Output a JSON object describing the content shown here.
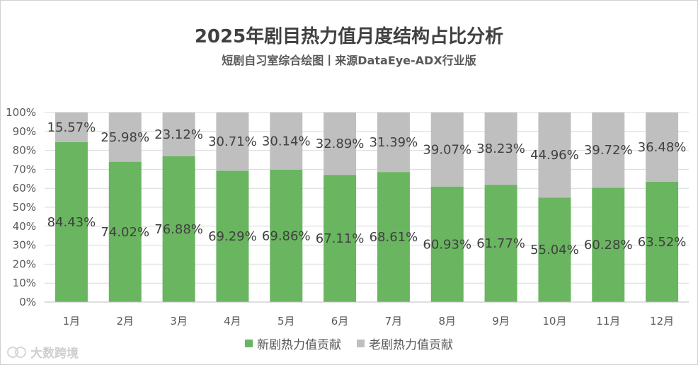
{
  "title": "2025年剧目热力值月度结构占比分析",
  "subtitle": "短剧自习室综合绘图丨来源DataEye-ADX行业版",
  "watermark": "大数跨境",
  "colors": {
    "new": "#6ab560",
    "old": "#bfbfbf",
    "grid": "#d9d9d9",
    "axis": "#bfbfbf"
  },
  "chart_data": {
    "type": "bar",
    "stacked": true,
    "percent": true,
    "categories": [
      "1月",
      "2月",
      "3月",
      "4月",
      "5月",
      "6月",
      "7月",
      "8月",
      "9月",
      "10月",
      "11月",
      "12月"
    ],
    "series": [
      {
        "name": "新剧热力值贡献",
        "values": [
          84.43,
          74.02,
          76.88,
          69.29,
          69.86,
          67.11,
          68.61,
          60.93,
          61.77,
          55.04,
          60.28,
          63.52
        ],
        "labels": [
          "84.43%",
          "74.02%",
          "76.88%",
          "69.29%",
          "69.86%",
          "67.11%",
          "68.61%",
          "60.93%",
          "61.77%",
          "55.04%",
          "60.28%",
          "63.52%"
        ]
      },
      {
        "name": "老剧热力值贡献",
        "values": [
          15.57,
          25.98,
          23.12,
          30.71,
          30.14,
          32.89,
          31.39,
          39.07,
          38.23,
          44.96,
          39.72,
          36.48
        ],
        "labels": [
          "15.57%",
          "25.98%",
          "23.12%",
          "30.71%",
          "30.14%",
          "32.89%",
          "31.39%",
          "39.07%",
          "38.23%",
          "44.96%",
          "39.72%",
          "36.48%"
        ]
      }
    ],
    "yticks": [
      "0%",
      "10%",
      "20%",
      "30%",
      "40%",
      "50%",
      "60%",
      "70%",
      "80%",
      "90%",
      "100%"
    ],
    "ylim": [
      0,
      100
    ],
    "grid": true,
    "legend_position": "bottom"
  }
}
